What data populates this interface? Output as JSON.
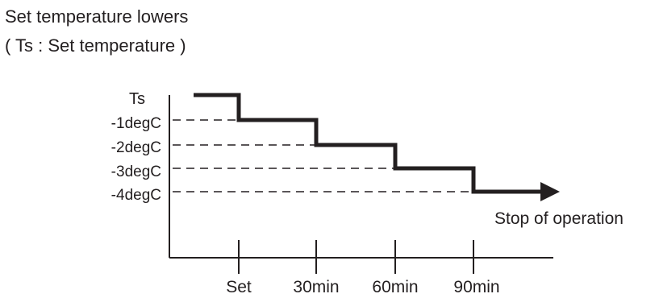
{
  "title": {
    "line1": "Set temperature lowers",
    "line2": "( Ts : Set temperature )"
  },
  "y_labels": [
    "Ts",
    "-1degC",
    "-2degC",
    "-3degC",
    "-4degC"
  ],
  "x_labels": [
    "Set",
    "30min",
    "60min",
    "90min"
  ],
  "end_label": "Stop of operation",
  "colors": {
    "line": "#231f20",
    "background": "#ffffff"
  }
}
